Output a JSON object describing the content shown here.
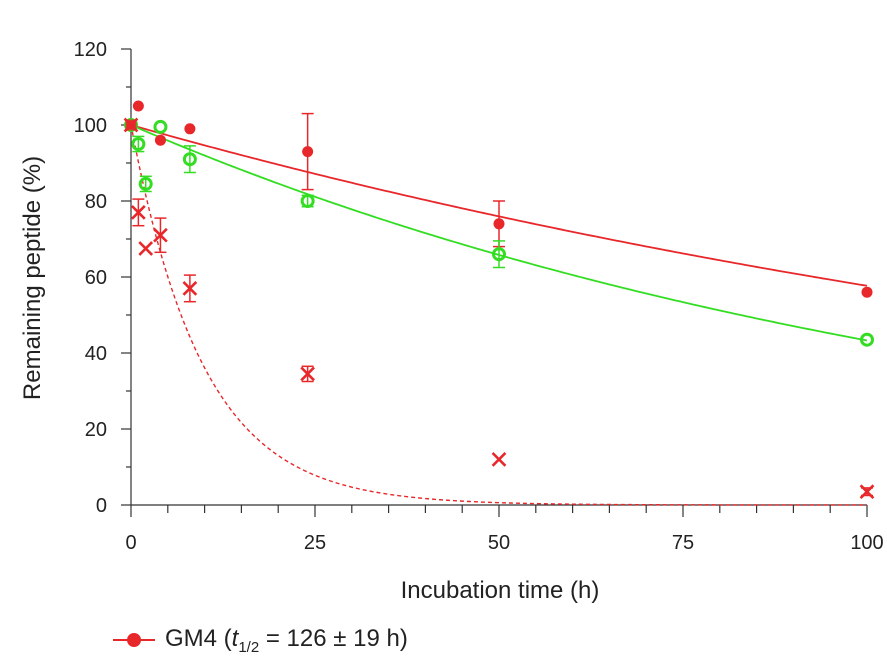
{
  "chart_data": {
    "type": "scatter",
    "xlabel": "Incubation time (h)",
    "ylabel": "Remaining peptide (%)",
    "xlim": [
      0,
      100
    ],
    "ylim": [
      0,
      120
    ],
    "x_ticks": [
      0,
      25,
      50,
      75,
      100
    ],
    "y_ticks": [
      0,
      20,
      40,
      60,
      80,
      100,
      120
    ],
    "grid": false,
    "series": [
      {
        "name": "GM4",
        "legend_text_prefix": "GM4 (",
        "legend_text_t": "t",
        "legend_text_sub": "1/2",
        "legend_text_suffix": " = 126 ± 19 h)",
        "marker": "filled-circle",
        "color": "#e8272b",
        "x": [
          0,
          1,
          4,
          8,
          24,
          50,
          100
        ],
        "y": [
          100,
          105,
          96,
          99,
          93,
          74,
          56
        ],
        "err": [
          0,
          0,
          0,
          0,
          10,
          6,
          0
        ],
        "fit": {
          "style": "solid",
          "half_life": 126,
          "y100": 56.5
        }
      },
      {
        "marker": "open-circle",
        "color": "#33dd22",
        "x": [
          0,
          1,
          2,
          4,
          8,
          24,
          50,
          100
        ],
        "y": [
          100,
          95,
          84.5,
          99.5,
          91,
          80,
          66,
          43.5
        ],
        "err": [
          0,
          2,
          2,
          0,
          3.5,
          1.5,
          3.5,
          0
        ],
        "fit": {
          "style": "solid",
          "y100": 43.3
        }
      },
      {
        "marker": "cross",
        "color": "#e8272b",
        "x": [
          0,
          1,
          2,
          4,
          8,
          24,
          50,
          100
        ],
        "y": [
          100,
          77,
          67.5,
          71,
          57,
          34.5,
          12,
          3.5
        ],
        "err": [
          0,
          3.5,
          0,
          4.5,
          3.5,
          2,
          0,
          1
        ],
        "fit": {
          "style": "dashed",
          "half_life": 6.8
        }
      }
    ]
  }
}
